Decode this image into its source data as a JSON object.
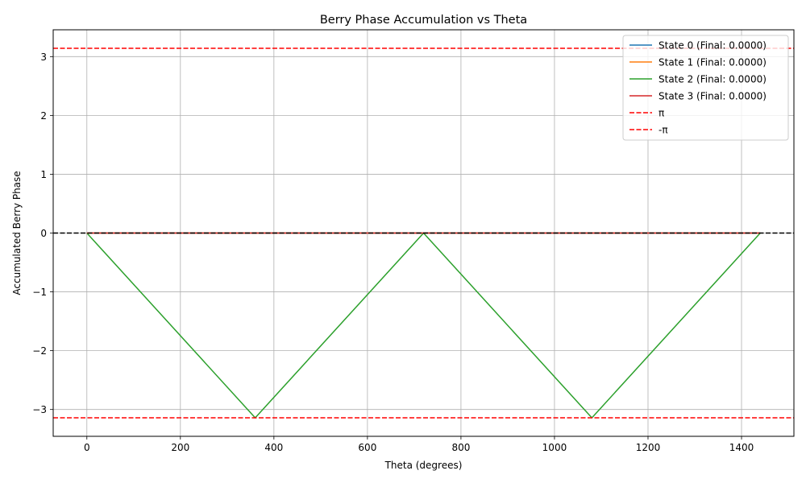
{
  "chart_data": {
    "type": "line",
    "title": "Berry Phase Accumulation vs Theta",
    "xlabel": "Theta (degrees)",
    "ylabel": "Accumulated Berry Phase",
    "xlim": [
      -72,
      1512
    ],
    "ylim": [
      -3.456,
      3.456
    ],
    "xticks": [
      0,
      200,
      400,
      600,
      800,
      1000,
      1200,
      1400
    ],
    "yticks": [
      -3,
      -2,
      -1,
      0,
      1,
      2,
      3
    ],
    "xtick_labels": [
      "0",
      "200",
      "400",
      "600",
      "800",
      "1000",
      "1200",
      "1400"
    ],
    "ytick_labels": [
      "−3",
      "−2",
      "−1",
      "0",
      "1",
      "2",
      "3"
    ],
    "grid": true,
    "legend_position": "top-right",
    "series": [
      {
        "name": "State 0 (Final: 0.0000)",
        "color": "#1f77b4",
        "style": "solid",
        "x": [
          0,
          1440
        ],
        "y": [
          0,
          0
        ]
      },
      {
        "name": "State 1 (Final: 0.0000)",
        "color": "#ff7f0e",
        "style": "solid",
        "x": [
          0,
          1440
        ],
        "y": [
          0,
          0
        ]
      },
      {
        "name": "State 2 (Final: 0.0000)",
        "color": "#2ca02c",
        "style": "solid",
        "x": [
          0,
          360,
          720,
          1080,
          1440
        ],
        "y": [
          0,
          -3.1416,
          0,
          -3.1416,
          0
        ]
      },
      {
        "name": "State 3 (Final: 0.0000)",
        "color": "#d62728",
        "style": "solid",
        "x": [
          0,
          1440
        ],
        "y": [
          0,
          0
        ]
      }
    ],
    "reference_lines": [
      {
        "name": "π",
        "y": 3.1416,
        "color": "#ff0000",
        "style": "dashed",
        "in_legend": true
      },
      {
        "name": "-π",
        "y": -3.1416,
        "color": "#ff0000",
        "style": "dashed",
        "in_legend": true
      },
      {
        "name": "",
        "y": 0,
        "color": "#000000",
        "style": "dashed",
        "in_legend": false
      }
    ]
  }
}
